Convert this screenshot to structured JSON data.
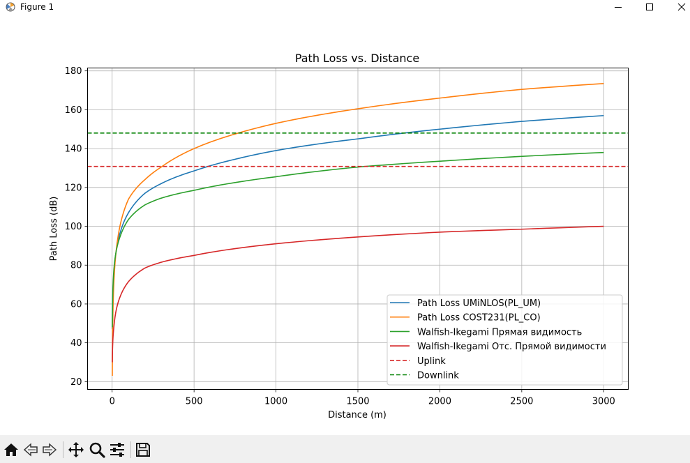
{
  "window": {
    "title": "Figure 1",
    "icon": "matplotlib-figure-icon",
    "controls": [
      "minimize-icon",
      "maximize-icon",
      "close-icon"
    ]
  },
  "toolbar": {
    "buttons": [
      {
        "name": "home-icon"
      },
      {
        "name": "back-arrow-icon"
      },
      {
        "name": "forward-arrow-icon"
      },
      {
        "name": "pan-move-icon"
      },
      {
        "name": "zoom-magnifier-icon"
      },
      {
        "name": "configure-subplots-icon"
      },
      {
        "name": "save-floppy-icon"
      }
    ]
  },
  "chart_data": {
    "type": "line",
    "title": "Path Loss vs. Distance",
    "xlabel": "Distance (m)",
    "ylabel": "Path Loss (dB)",
    "xlim": [
      -150,
      3150
    ],
    "ylim": [
      16,
      181.5
    ],
    "xticks": [
      0,
      500,
      1000,
      1500,
      2000,
      2500,
      3000
    ],
    "yticks": [
      20,
      40,
      60,
      80,
      100,
      120,
      140,
      160,
      180
    ],
    "grid": true,
    "legend_position": "lower right",
    "series": [
      {
        "name": "Path Loss UMiNLOS(PL_UM)",
        "color": "#1f77b4",
        "style": "solid",
        "x": [
          1,
          10,
          50,
          100,
          200,
          300,
          500,
          750,
          1000,
          1500,
          2000,
          2500,
          3000
        ],
        "y": [
          47,
          75,
          97,
          107,
          117,
          122,
          128.5,
          134.5,
          139,
          145,
          150,
          154,
          157
        ]
      },
      {
        "name": "Path Loss COST231(PL_CO)",
        "color": "#ff7f0e",
        "style": "solid",
        "x": [
          1,
          10,
          50,
          100,
          200,
          300,
          500,
          750,
          1000,
          1500,
          2000,
          2500,
          3000
        ],
        "y": [
          23,
          70,
          101,
          114,
          124,
          130.5,
          140,
          147.5,
          153,
          160.5,
          166,
          170.5,
          173.5
        ]
      },
      {
        "name": "Walfish-Ikegami Прямая видимость",
        "color": "#2ca02c",
        "style": "solid",
        "x": [
          1,
          10,
          50,
          100,
          200,
          300,
          500,
          750,
          1000,
          1500,
          2000,
          2500,
          3000
        ],
        "y": [
          48,
          77,
          95,
          103.5,
          111,
          114.5,
          118.5,
          122.5,
          125.5,
          130.5,
          133.5,
          136,
          138
        ]
      },
      {
        "name": "Walfish-Ikegami Отс. Прямой видимости",
        "color": "#d62728",
        "style": "solid",
        "x": [
          1,
          10,
          50,
          100,
          200,
          300,
          500,
          750,
          1000,
          1500,
          2000,
          2500,
          3000
        ],
        "y": [
          30,
          47.5,
          64,
          71.5,
          78.5,
          81.5,
          85,
          88.5,
          91,
          94.5,
          97,
          98.5,
          100
        ]
      },
      {
        "name": "Uplink",
        "color": "#d62728",
        "style": "dashed",
        "constant": 130.8
      },
      {
        "name": "Downlink",
        "color": "#008000",
        "style": "dashed",
        "constant": 148
      }
    ]
  }
}
